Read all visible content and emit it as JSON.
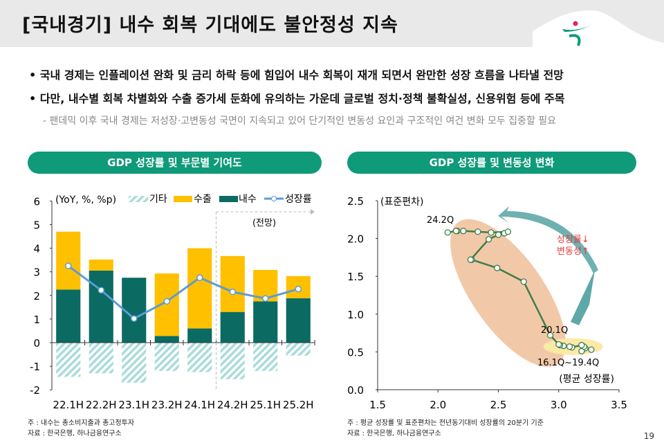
{
  "header": {
    "title": "[국내경기] 내수 회복 기대에도 불안정성 지속"
  },
  "bullets": [
    "• 국내 경제는 인플레이션 완화 및 금리 하락 등에 힘입어 내수 회복이 재개 되면서 완만한 성장 흐름을 나타낼 전망",
    "• 다만, 내수별 회복 차별화와 수출 증가세 둔화에 유의하는 가운데 글로벌 정치·정책 불확실성, 신용위험 등에 주목"
  ],
  "sub_bullet": "- 팬데믹 이후 국내 경제는 저성장·고변동성 국면이 지속되고 있어 단기적인 변동성 요인과 구조적인 여건 변화 모두 집중할 필요",
  "colors": {
    "accent": "#0f9a7a",
    "domestic": "#0b6b63",
    "export": "#ffc000",
    "other": "#a8dcd9",
    "growth": "#5b9bd5",
    "ellipse1": "#f2c9a8",
    "ellipse2": "#fde9a6",
    "arrow": "#5fa8a8",
    "path": "#3e7d4a",
    "annotation": "#e03c3c"
  },
  "chart_data": [
    {
      "type": "bar",
      "title": "GDP 성장률 및 부문별 기여도",
      "unit_label": "(YoY, %, %p)",
      "forecast_label": "(전망)",
      "categories": [
        "22.1H",
        "22.2H",
        "23.1H",
        "23.2H",
        "24.1H",
        "24.2H",
        "25.1H",
        "25.2H"
      ],
      "ylim": [
        -2,
        6
      ],
      "yticks": [
        -2,
        -1,
        0,
        1,
        2,
        3,
        4,
        5,
        6
      ],
      "legend_position": "top",
      "series": [
        {
          "name": "기타",
          "kind": "stacked-bar",
          "values": [
            -1.45,
            -1.3,
            -1.7,
            -1.2,
            -1.25,
            -1.55,
            -1.2,
            -0.55
          ]
        },
        {
          "name": "수출",
          "kind": "stacked-bar",
          "values": [
            2.45,
            0.47,
            0.0,
            2.65,
            3.4,
            2.37,
            1.33,
            0.94
          ]
        },
        {
          "name": "내수",
          "kind": "stacked-bar",
          "values": [
            2.25,
            3.05,
            2.75,
            0.28,
            0.6,
            1.3,
            1.75,
            1.88
          ]
        },
        {
          "name": "성장률",
          "kind": "line",
          "values": [
            3.25,
            2.22,
            1.02,
            1.75,
            2.75,
            2.15,
            1.87,
            2.27
          ]
        }
      ],
      "note": "주 : 내수는 총소비지출과 총고정투자",
      "source": "자료 : 한국은행, 하나금융연구소"
    },
    {
      "type": "scatter",
      "title": "GDP 성장률 및 변동성 변화",
      "ylabel": "(표준편차)",
      "xlabel": "(평균 성장률)",
      "xlim": [
        1.5,
        3.5
      ],
      "ylim": [
        0,
        2.5
      ],
      "xticks": [
        "1.5",
        "2.0",
        "2.5",
        "3.0",
        "3.5"
      ],
      "yticks": [
        "0.0",
        "0.5",
        "1.0",
        "1.5",
        "2.0",
        "2.5"
      ],
      "points": [
        [
          3.27,
          0.53
        ],
        [
          3.22,
          0.55
        ],
        [
          3.19,
          0.51
        ],
        [
          3.21,
          0.57
        ],
        [
          3.19,
          0.59
        ],
        [
          3.11,
          0.56
        ],
        [
          3.09,
          0.57
        ],
        [
          3.04,
          0.58
        ],
        [
          3.01,
          0.59
        ],
        [
          3.0,
          0.6
        ],
        [
          2.93,
          0.72
        ],
        [
          2.71,
          1.43
        ],
        [
          2.49,
          1.61
        ],
        [
          2.28,
          1.72
        ],
        [
          2.27,
          1.72
        ],
        [
          2.42,
          1.99
        ],
        [
          2.5,
          2.05
        ],
        [
          2.55,
          2.07
        ],
        [
          2.58,
          2.09
        ],
        [
          2.44,
          2.08
        ],
        [
          2.33,
          2.09
        ],
        [
          2.21,
          2.1
        ],
        [
          2.16,
          2.1
        ],
        [
          2.15,
          2.1
        ],
        [
          2.08,
          2.08
        ]
      ],
      "annotations": {
        "start": "16.1Q~19.4Q",
        "mid": "20.1Q",
        "end": "24.2Q",
        "trend1": "성장률↓",
        "trend2": "변동성↑"
      },
      "note": "주 : 평균 성장률 및 표준편차는 전년동기대비 성장률의 20분기 기준",
      "source": "자료 : 한국은행, 하나금융연구소"
    }
  ],
  "page_number": "19"
}
